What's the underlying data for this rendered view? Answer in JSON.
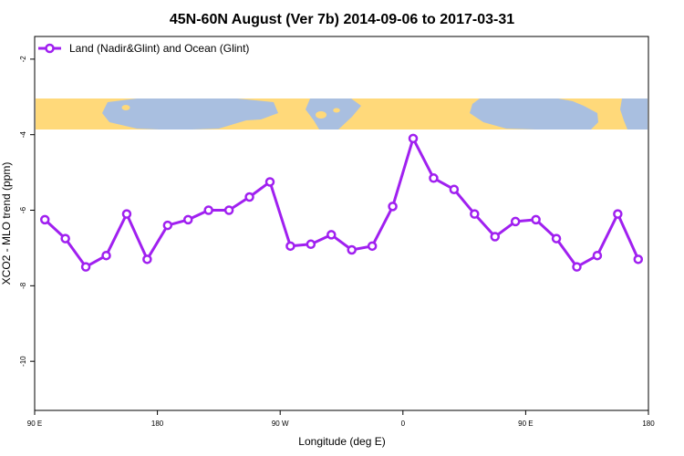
{
  "chart_data": {
    "type": "line",
    "title": "45N-60N August (Ver 7b)   2014-09-06 to 2017-03-31",
    "xlabel": "Longitude (deg E)",
    "ylabel": "XCO2 - MLO trend (ppm)",
    "xticks": [
      {
        "value": 90,
        "label": "90 E"
      },
      {
        "value": 180,
        "label": "180"
      },
      {
        "value": 270,
        "label": "90 W"
      },
      {
        "value": 360,
        "label": "0"
      },
      {
        "value": 450,
        "label": "90 E"
      },
      {
        "value": 540,
        "label": "180"
      }
    ],
    "yticks": [
      {
        "value": -2,
        "label": "-2"
      },
      {
        "value": -4,
        "label": "-4"
      },
      {
        "value": -6,
        "label": "-6"
      },
      {
        "value": -8,
        "label": "-8"
      },
      {
        "value": -10,
        "label": "-10"
      }
    ],
    "xlim": [
      90,
      540
    ],
    "ylim": [
      -11.3,
      -1.4
    ],
    "legend_position": "top-left",
    "series": [
      {
        "name": "Land (Nadir&Glint) and Ocean (Glint)",
        "color": "#a020f0",
        "x": [
          97.5,
          112.5,
          127.5,
          142.5,
          157.5,
          172.5,
          187.5,
          202.5,
          217.5,
          232.5,
          247.5,
          262.5,
          277.5,
          292.5,
          307.5,
          322.5,
          337.5,
          352.5,
          367.5,
          382.5,
          397.5,
          412.5,
          427.5,
          442.5,
          457.5,
          472.5,
          487.5,
          502.5,
          517.5,
          532.5
        ],
        "y": [
          -6.25,
          -6.75,
          -7.5,
          -7.2,
          -6.1,
          -7.3,
          -6.4,
          -6.25,
          -6.0,
          -6.0,
          -5.65,
          -5.25,
          -6.95,
          -6.9,
          -6.65,
          -7.05,
          -6.95,
          -5.9,
          -4.1,
          -5.15,
          -5.45,
          -6.1,
          -6.7,
          -6.3,
          -6.25,
          -6.75,
          -7.5,
          -7.2,
          -6.1,
          -7.3
        ]
      }
    ],
    "map_strip": {
      "ocean_color": "#a9bfe0",
      "land_color": "#ffd97a",
      "lat_range": "45N-60N"
    }
  }
}
